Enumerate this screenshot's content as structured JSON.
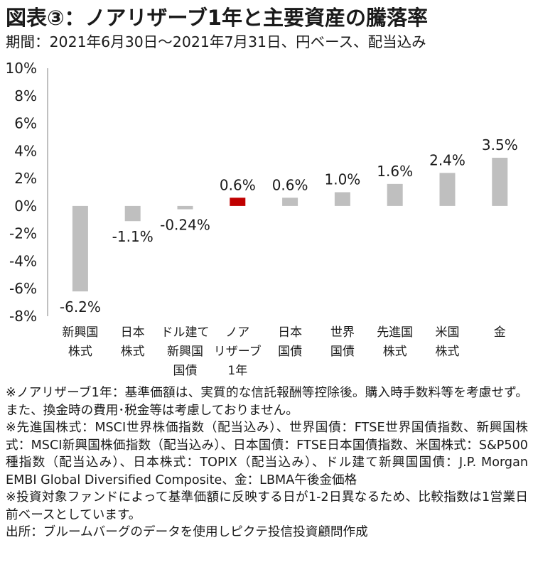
{
  "title": "図表③：ノアリザーブ1年と主要資産の騰落率",
  "subtitle": "期間：2021年6月30日～2021年7月31日、円ベース、配当込み",
  "chart_data": {
    "type": "bar",
    "title": "図表③：ノアリザーブ1年と主要資産の騰落率",
    "ylim": [
      -8,
      10
    ],
    "yticks": [
      "10%",
      "8%",
      "6%",
      "4%",
      "2%",
      "0%",
      "-2%",
      "-4%",
      "-6%",
      "-8%"
    ],
    "categories": [
      [
        "新興国",
        "株式"
      ],
      [
        "日本",
        "株式"
      ],
      [
        "ドル建て",
        "新興国",
        "国債"
      ],
      [
        "ノア",
        "リザーブ",
        "1年"
      ],
      [
        "日本",
        "国債"
      ],
      [
        "世界",
        "国債"
      ],
      [
        "先進国",
        "株式"
      ],
      [
        "米国",
        "株式"
      ],
      [
        "金"
      ]
    ],
    "values": [
      -6.2,
      -1.1,
      -0.24,
      0.6,
      0.6,
      1.0,
      1.6,
      2.4,
      3.5
    ],
    "value_labels": [
      "-6.2%",
      "-1.1%",
      "-0.24%",
      "0.6%",
      "0.6%",
      "1.0%",
      "1.6%",
      "2.4%",
      "3.5%"
    ],
    "colors": [
      "#bfbfbf",
      "#bfbfbf",
      "#bfbfbf",
      "#c00000",
      "#bfbfbf",
      "#bfbfbf",
      "#bfbfbf",
      "#bfbfbf",
      "#bfbfbf"
    ],
    "grid": false
  },
  "notes": [
    "※ノアリザーブ1年：基準価額は、実質的な信託報酬等控除後。購入時手数料等を考慮せず。また、換金時の費用･税金等は考慮しておりません。",
    "※先進国株式：MSCI世界株価指数（配当込み）、世界国債：FTSE世界国債指数、新興国株式：MSCI新興国株価指数（配当込み）、日本国債：FTSE日本国債指数、米国株式：S&P500種指数（配当込み）、日本株式：TOPIX（配当込み）、ドル建て新興国国債：J.P. Morgan EMBI Global Diversified Composite、金：LBMA午後金価格",
    "※投資対象ファンドによって基準価額に反映する日が1-2日異なるため、比較指数は1営業日前ベースとしています。",
    "出所：ブルームバーグのデータを使用しピクテ投信投資顧問作成"
  ]
}
